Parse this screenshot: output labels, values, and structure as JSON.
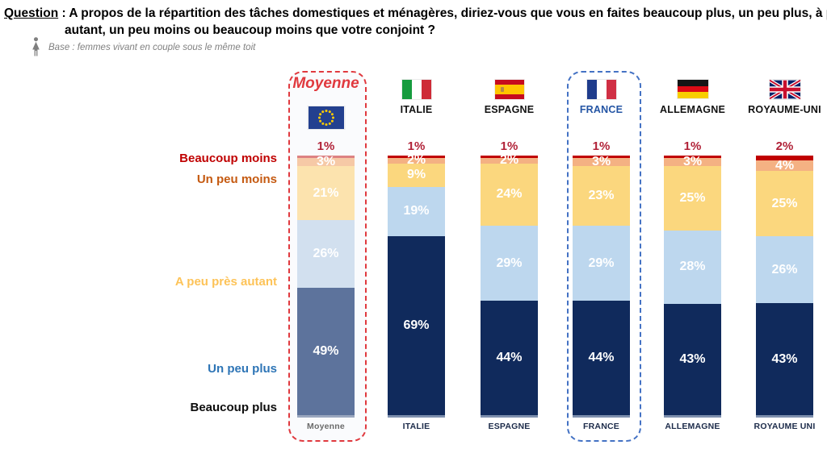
{
  "page": {
    "question_label": "Question",
    "question_rest": " : A propos de la répartition des tâches domestiques et ménagères, diriez-vous que vous en faites beaucoup plus, un peu plus, à peu près autant, un peu moins ou beaucoup moins que votre conjoint ?",
    "base_note": "Base : femmes vivant en couple sous le même toit"
  },
  "legend": {
    "items": [
      {
        "label": "Beaucoup moins",
        "color": "#c00000"
      },
      {
        "label": "Un peu moins",
        "color": "#c55a11"
      },
      {
        "label": "A peu près autant",
        "color": "#fdc358"
      },
      {
        "label": "Un peu plus",
        "color": "#2e75b6"
      },
      {
        "label": "Beaucoup plus",
        "color": "#0d0d0d"
      }
    ]
  },
  "palettes": {
    "normal": {
      "segments": [
        "#c00000",
        "#f4b183",
        "#fbd77e",
        "#bdd7ee",
        "#102a5c"
      ],
      "baseline": "#7d8fae"
    },
    "moyenne": {
      "segments": [
        "#dd8282",
        "#f6c9a6",
        "#fce3ae",
        "#d2e0ef",
        "#5d739c"
      ],
      "baseline": "#9aa7bf"
    }
  },
  "top_label_color": "#b12238",
  "moyenne_title_color": "#e0393e",
  "france_header_color": "#2455a4",
  "chart_data": {
    "type": "bar",
    "stacked": true,
    "orientation": "vertical",
    "unit": "percent",
    "categories_top_to_bottom": [
      "Beaucoup moins",
      "Un peu moins",
      "A peu près autant",
      "Un peu plus",
      "Beaucoup plus"
    ],
    "columns": [
      {
        "id": "moyenne",
        "header_label": "Moyenne",
        "flag": "eu",
        "bottom_label": "Moyenne",
        "palette": "moyenne",
        "highlight": "red-dashed",
        "values": [
          1,
          3,
          21,
          26,
          49
        ]
      },
      {
        "id": "italie",
        "header_label": "ITALIE",
        "flag": "it",
        "bottom_label": "ITALIE",
        "palette": "normal",
        "values": [
          1,
          2,
          9,
          19,
          69
        ]
      },
      {
        "id": "espagne",
        "header_label": "ESPAGNE",
        "flag": "es",
        "bottom_label": "ESPAGNE",
        "palette": "normal",
        "values": [
          1,
          2,
          24,
          29,
          44
        ]
      },
      {
        "id": "france",
        "header_label": "FRANCE",
        "flag": "fr",
        "bottom_label": "FRANCE",
        "palette": "normal",
        "highlight": "blue-dashed",
        "values": [
          1,
          3,
          23,
          29,
          44
        ]
      },
      {
        "id": "allemagne",
        "header_label": "ALLEMAGNE",
        "flag": "de",
        "bottom_label": "ALLEMAGNE",
        "palette": "normal",
        "values": [
          1,
          3,
          25,
          28,
          43
        ]
      },
      {
        "id": "royaume_uni",
        "header_label": "ROYAUME-UNI",
        "flag": "gb",
        "bottom_label": "ROYAUME UNI",
        "palette": "normal",
        "values": [
          2,
          4,
          25,
          26,
          43
        ]
      }
    ]
  }
}
